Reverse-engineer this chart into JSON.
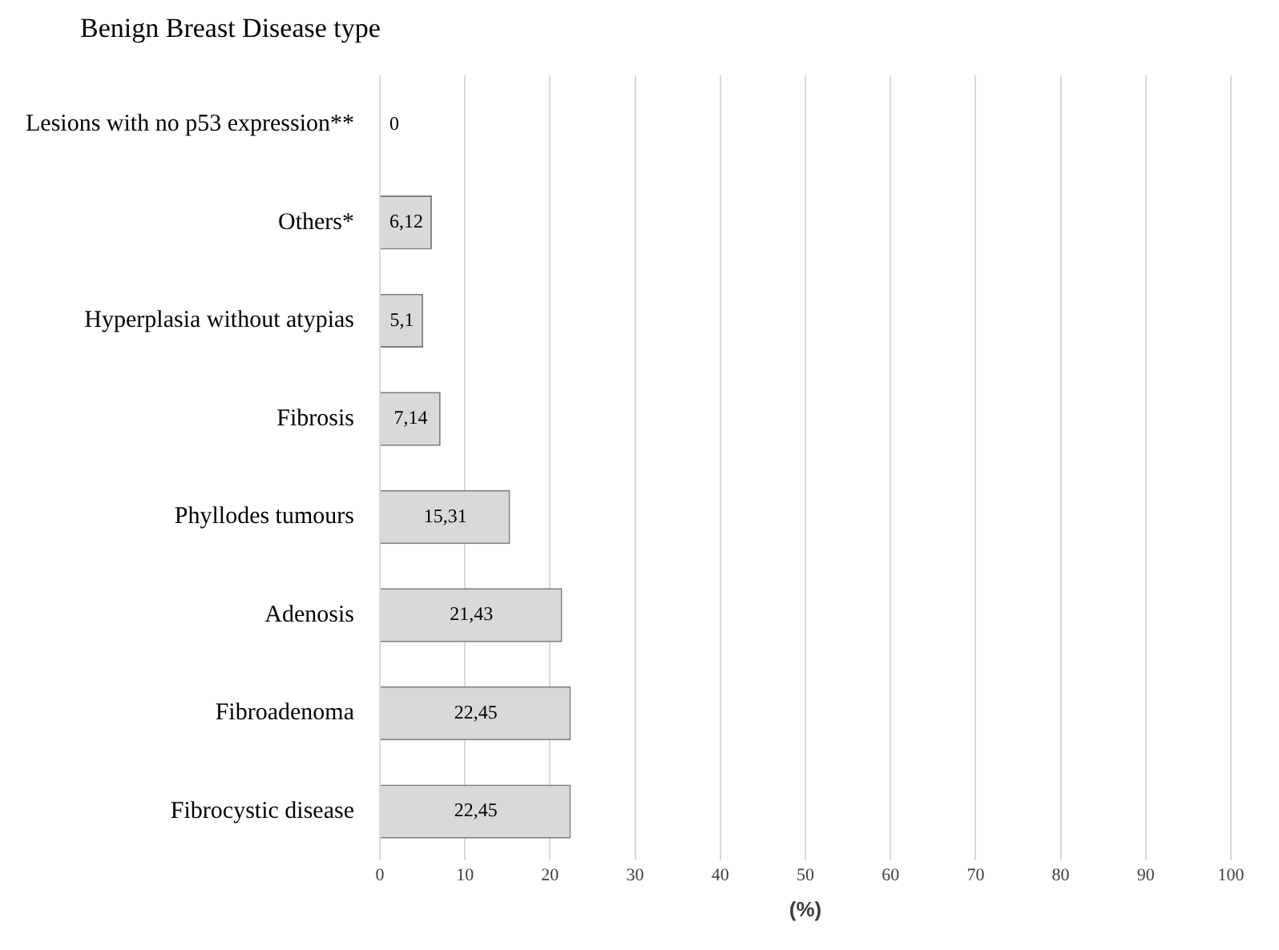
{
  "chart_data": {
    "type": "bar",
    "orientation": "horizontal",
    "ylabel": "Benign Breast Disease type",
    "xlabel": "(%)",
    "categories": [
      "Lesions with no p53 expression**",
      "Others*",
      "Hyperplasia without atypias",
      "Fibrosis",
      "Phyllodes tumours",
      "Adenosis",
      "Fibroadenoma",
      "Fibrocystic disease"
    ],
    "values": [
      0,
      6.12,
      5.1,
      7.14,
      15.31,
      21.43,
      22.45,
      22.45
    ],
    "value_labels": [
      "0",
      "6,12",
      "5,1",
      "7,14",
      "15,31",
      "21,43",
      "22,45",
      "22,45"
    ],
    "colors": [
      "#595959",
      "#d9d9d9",
      "#d9d9d9",
      "#d9d9d9",
      "#d9d9d9",
      "#d9d9d9",
      "#d9d9d9",
      "#d9d9d9"
    ],
    "xlim": [
      0,
      100
    ],
    "xticks": [
      0,
      10,
      20,
      30,
      40,
      50,
      60,
      70,
      80,
      90,
      100
    ],
    "grid": "x"
  }
}
